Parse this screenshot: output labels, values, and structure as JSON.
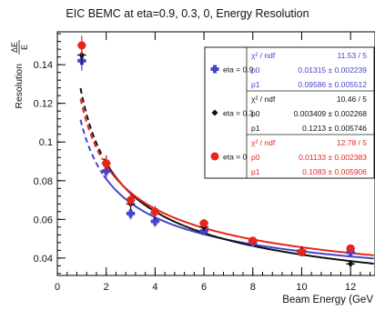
{
  "chart_data": {
    "type": "scatter",
    "title": "EIC BEMC at eta=0.9, 0.3, 0, Energy Resolution",
    "xlabel": "Beam Energy (GeV",
    "ylabel_main": "Resolution",
    "ylabel_frac_num": "ΔE",
    "ylabel_frac_den": "E",
    "xlim": [
      0,
      13
    ],
    "ylim": [
      0.031,
      0.157
    ],
    "x_ticks": [
      0,
      2,
      4,
      6,
      8,
      10,
      12
    ],
    "x_tick_labels": [
      "0",
      "2",
      "4",
      "6",
      "8",
      "10",
      "12"
    ],
    "y_ticks": [
      0.04,
      0.06,
      0.08,
      0.1,
      0.12,
      0.14
    ],
    "y_tick_labels": [
      "0.04",
      "0.06",
      "0.08",
      "0.1",
      "0.12",
      "0.14"
    ],
    "grid": false,
    "series": [
      {
        "name": "eta = 0.9",
        "color": "#4444cc",
        "marker": "cross",
        "x": [
          1,
          2,
          3,
          4,
          6,
          8,
          10,
          12
        ],
        "y": [
          0.142,
          0.085,
          0.063,
          0.059,
          0.054,
          0.048,
          0.043,
          0.043
        ],
        "yerr": [
          0.005,
          0.004,
          0.003,
          0.003,
          0.002,
          0.002,
          0.002,
          0.002
        ],
        "fit": {
          "p0": 0.01315,
          "p1": 0.09586
        },
        "stats": {
          "chi2_label": "χ² / ndf",
          "chi2": "11.53 / 5",
          "p0_label": "p0",
          "p0": "0.01315 ± 0.002239",
          "p1_label": "p1",
          "p1": "0.09586 ± 0.005512"
        }
      },
      {
        "name": "eta = 0.3",
        "color": "#111111",
        "marker": "diamond",
        "x": [
          1,
          2,
          3,
          4,
          6,
          8,
          10,
          12
        ],
        "y": [
          0.145,
          0.089,
          0.068,
          0.063,
          0.056,
          0.049,
          0.044,
          0.037
        ],
        "yerr": [
          0.005,
          0.004,
          0.003,
          0.003,
          0.002,
          0.002,
          0.002,
          0.002
        ],
        "fit": {
          "p0": 0.003409,
          "p1": 0.1213
        },
        "stats": {
          "chi2_label": "χ² / ndf",
          "chi2": "10.46 / 5",
          "p0_label": "p0",
          "p0": "0.003409 ± 0.002268",
          "p1_label": "p1",
          "p1": "0.1213 ± 0.005746"
        }
      },
      {
        "name": "eta = 0",
        "color": "#e8241c",
        "marker": "circle",
        "x": [
          1,
          2,
          3,
          4,
          6,
          8,
          10,
          12
        ],
        "y": [
          0.15,
          0.089,
          0.07,
          0.064,
          0.058,
          0.049,
          0.043,
          0.045
        ],
        "yerr": [
          0.005,
          0.004,
          0.003,
          0.003,
          0.002,
          0.002,
          0.002,
          0.002
        ],
        "fit": {
          "p0": 0.01133,
          "p1": 0.1083
        },
        "stats": {
          "chi2_label": "χ² / ndf",
          "chi2": "12.78 / 5",
          "p0_label": "p0",
          "p0": "0.01133 ± 0.002383",
          "p1_label": "p1",
          "p1": "0.1083 ± 0.005906"
        }
      }
    ],
    "legend_placement": "top-right"
  }
}
